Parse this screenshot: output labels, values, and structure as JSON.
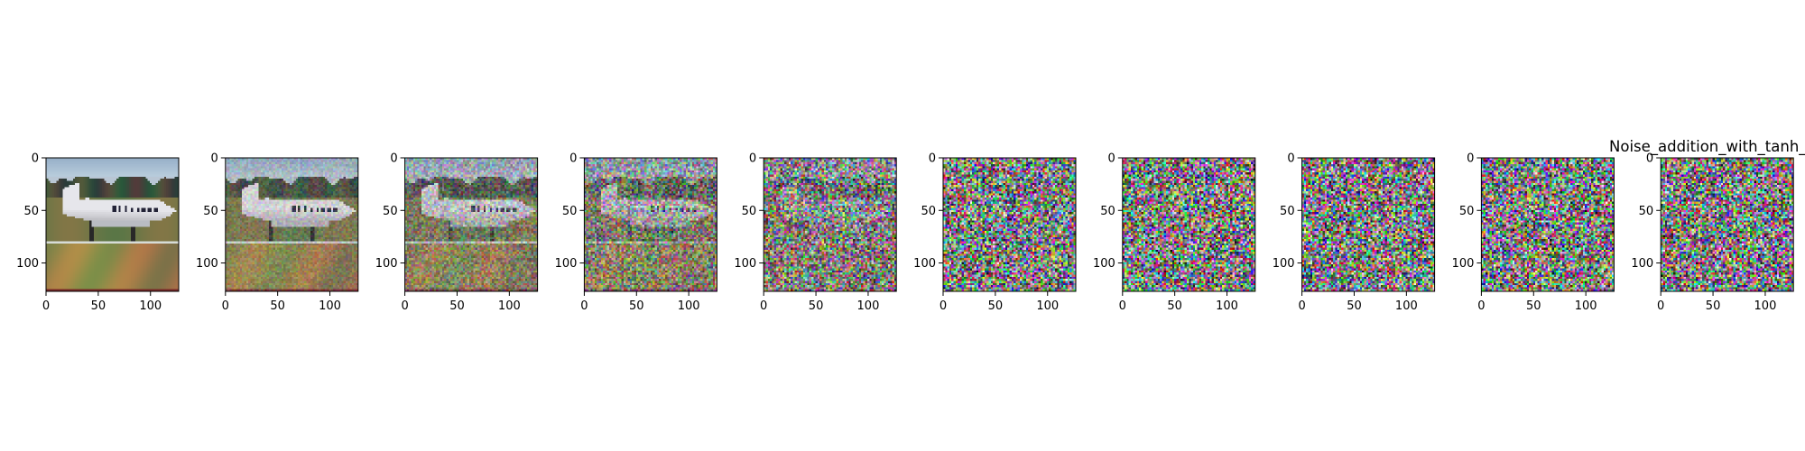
{
  "figure": {
    "background": "#ffffff",
    "title": "Noise_addition_with_tanh_"
  },
  "chart_data": [
    {
      "type": "image",
      "panel": 1,
      "noise_level": 0.0,
      "xlim": [
        0,
        127
      ],
      "ylim": [
        127,
        0
      ],
      "xticks": [
        0,
        50,
        100
      ],
      "yticks": [
        0,
        50,
        100
      ]
    },
    {
      "type": "image",
      "panel": 2,
      "noise_level": 0.2,
      "xlim": [
        0,
        127
      ],
      "ylim": [
        127,
        0
      ],
      "xticks": [
        0,
        50,
        100
      ],
      "yticks": [
        0,
        50,
        100
      ]
    },
    {
      "type": "image",
      "panel": 3,
      "noise_level": 0.38,
      "xlim": [
        0,
        127
      ],
      "ylim": [
        127,
        0
      ],
      "xticks": [
        0,
        50,
        100
      ],
      "yticks": [
        0,
        50,
        100
      ]
    },
    {
      "type": "image",
      "panel": 4,
      "noise_level": 0.58,
      "xlim": [
        0,
        127
      ],
      "ylim": [
        127,
        0
      ],
      "xticks": [
        0,
        50,
        100
      ],
      "yticks": [
        0,
        50,
        100
      ]
    },
    {
      "type": "image",
      "panel": 5,
      "noise_level": 0.8,
      "xlim": [
        0,
        127
      ],
      "ylim": [
        127,
        0
      ],
      "xticks": [
        0,
        50,
        100
      ],
      "yticks": [
        0,
        50,
        100
      ]
    },
    {
      "type": "image",
      "panel": 6,
      "noise_level": 0.97,
      "xlim": [
        0,
        127
      ],
      "ylim": [
        127,
        0
      ],
      "xticks": [
        0,
        50,
        100
      ],
      "yticks": [
        0,
        50,
        100
      ]
    },
    {
      "type": "image",
      "panel": 7,
      "noise_level": 1.0,
      "xlim": [
        0,
        127
      ],
      "ylim": [
        127,
        0
      ],
      "xticks": [
        0,
        50,
        100
      ],
      "yticks": [
        0,
        50,
        100
      ]
    },
    {
      "type": "image",
      "panel": 8,
      "noise_level": 1.0,
      "xlim": [
        0,
        127
      ],
      "ylim": [
        127,
        0
      ],
      "xticks": [
        0,
        50,
        100
      ],
      "yticks": [
        0,
        50,
        100
      ]
    },
    {
      "type": "image",
      "panel": 9,
      "noise_level": 1.0,
      "xlim": [
        0,
        127
      ],
      "ylim": [
        127,
        0
      ],
      "xticks": [
        0,
        50,
        100
      ],
      "yticks": [
        0,
        50,
        100
      ]
    },
    {
      "type": "image",
      "panel": 10,
      "noise_level": 1.0,
      "xlim": [
        0,
        127
      ],
      "ylim": [
        127,
        0
      ],
      "xticks": [
        0,
        50,
        100
      ],
      "yticks": [
        0,
        50,
        100
      ],
      "title": "Noise_addition_with_tanh_"
    }
  ]
}
